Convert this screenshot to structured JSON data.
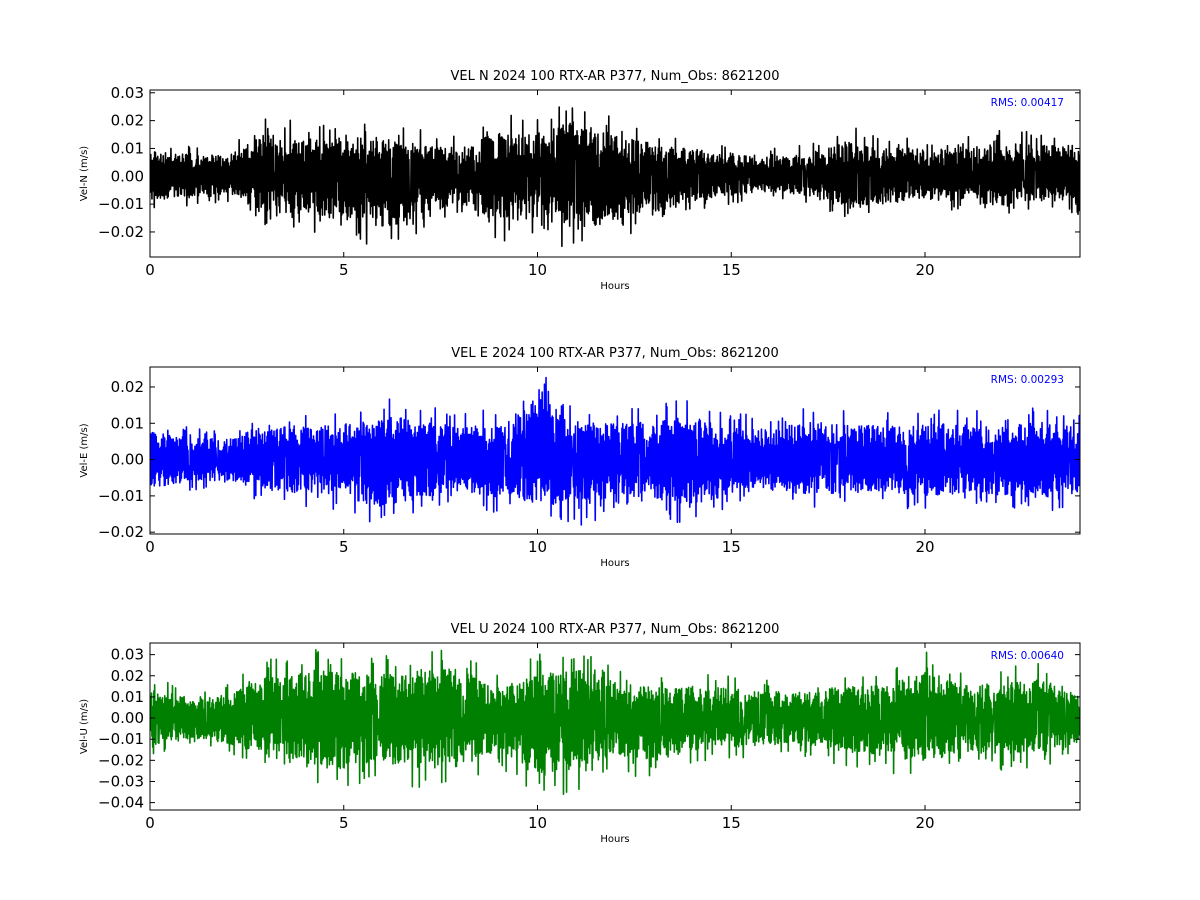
{
  "chart_data": [
    {
      "type": "line",
      "title": "VEL N 2024 100 RTX-AR  P377, Num_Obs: 8621200",
      "xlabel": "Hours",
      "ylabel": "Vel-N (m/s)",
      "xlim": [
        0,
        24
      ],
      "ylim": [
        -0.029,
        0.031
      ],
      "x_ticks": [
        0,
        5,
        10,
        15,
        20
      ],
      "y_ticks": [
        -0.02,
        -0.01,
        0.0,
        0.01,
        0.02,
        0.03
      ],
      "x_tick_labels": [
        "0",
        "5",
        "10",
        "15",
        "20"
      ],
      "y_tick_labels": [
        "−0.02",
        "−0.01",
        "0.00",
        "0.01",
        "0.02",
        "0.03"
      ],
      "annotation": "RMS:  0.00417",
      "series": [
        {
          "color": "#000000",
          "x": [
            0,
            1,
            2,
            3,
            4,
            5,
            6,
            7,
            8,
            9,
            10,
            11,
            12,
            13,
            14,
            15,
            16,
            17,
            18,
            19,
            20,
            21,
            22,
            23,
            24
          ],
          "y_max": [
            0.013,
            0.012,
            0.011,
            0.022,
            0.019,
            0.022,
            0.02,
            0.017,
            0.015,
            0.023,
            0.022,
            0.03,
            0.021,
            0.017,
            0.014,
            0.012,
            0.01,
            0.012,
            0.018,
            0.015,
            0.014,
            0.015,
            0.017,
            0.016,
            0.016
          ],
          "y_min": [
            -0.012,
            -0.011,
            -0.01,
            -0.018,
            -0.02,
            -0.022,
            -0.027,
            -0.02,
            -0.014,
            -0.024,
            -0.022,
            -0.029,
            -0.023,
            -0.02,
            -0.013,
            -0.01,
            -0.008,
            -0.01,
            -0.017,
            -0.014,
            -0.012,
            -0.013,
            -0.016,
            -0.013,
            -0.014
          ]
        }
      ]
    },
    {
      "type": "line",
      "title": "VEL E 2024 100 RTX-AR  P377, Num_Obs: 8621200",
      "xlabel": "Hours",
      "ylabel": "Vel-E (m/s)",
      "xlim": [
        0,
        24
      ],
      "ylim": [
        -0.0205,
        0.0255
      ],
      "x_ticks": [
        0,
        5,
        10,
        15,
        20
      ],
      "y_ticks": [
        -0.02,
        -0.01,
        0.0,
        0.01,
        0.02
      ],
      "x_tick_labels": [
        "0",
        "5",
        "10",
        "15",
        "20"
      ],
      "y_tick_labels": [
        "−0.02",
        "−0.01",
        "0.00",
        "0.01",
        "0.02"
      ],
      "annotation": "RMS:  0.00293",
      "series": [
        {
          "color": "#0000ff",
          "x": [
            0,
            1,
            2,
            3,
            4,
            5,
            6,
            7,
            8,
            9,
            10,
            11,
            12,
            13,
            14,
            15,
            16,
            17,
            18,
            19,
            20,
            21,
            22,
            23,
            24
          ],
          "y_max": [
            0.011,
            0.009,
            0.008,
            0.014,
            0.013,
            0.014,
            0.018,
            0.015,
            0.013,
            0.014,
            0.025,
            0.015,
            0.014,
            0.015,
            0.017,
            0.013,
            0.012,
            0.015,
            0.014,
            0.013,
            0.014,
            0.014,
            0.013,
            0.015,
            0.013
          ],
          "y_min": [
            -0.011,
            -0.009,
            -0.008,
            -0.013,
            -0.013,
            -0.015,
            -0.019,
            -0.015,
            -0.012,
            -0.015,
            -0.017,
            -0.02,
            -0.014,
            -0.015,
            -0.019,
            -0.013,
            -0.012,
            -0.014,
            -0.013,
            -0.013,
            -0.014,
            -0.014,
            -0.014,
            -0.015,
            -0.013
          ]
        }
      ]
    },
    {
      "type": "line",
      "title": "VEL U 2024 100 RTX-AR  P377, Num_Obs: 8621200",
      "xlabel": "Hours",
      "ylabel": "Vel-U (m/s)",
      "xlim": [
        0,
        24
      ],
      "ylim": [
        -0.0435,
        0.0355
      ],
      "x_ticks": [
        0,
        5,
        10,
        15,
        20
      ],
      "y_ticks": [
        -0.04,
        -0.03,
        -0.02,
        -0.01,
        0.0,
        0.01,
        0.02,
        0.03
      ],
      "x_tick_labels": [
        "0",
        "5",
        "10",
        "15",
        "20"
      ],
      "y_tick_labels": [
        "−0.04",
        "−0.03",
        "−0.02",
        "−0.01",
        "0.00",
        "0.01",
        "0.02",
        "0.03"
      ],
      "annotation": "RMS:  0.00640",
      "series": [
        {
          "color": "#008000",
          "x": [
            0,
            1,
            2,
            3,
            4,
            5,
            6,
            7,
            8,
            9,
            10,
            11,
            12,
            13,
            14,
            15,
            16,
            17,
            18,
            19,
            20,
            21,
            22,
            23,
            24
          ],
          "y_max": [
            0.02,
            0.014,
            0.016,
            0.028,
            0.033,
            0.031,
            0.03,
            0.034,
            0.033,
            0.02,
            0.03,
            0.034,
            0.024,
            0.022,
            0.022,
            0.02,
            0.018,
            0.018,
            0.022,
            0.022,
            0.035,
            0.022,
            0.024,
            0.026,
            0.018
          ],
          "y_min": [
            -0.02,
            -0.014,
            -0.017,
            -0.026,
            -0.037,
            -0.034,
            -0.03,
            -0.034,
            -0.033,
            -0.022,
            -0.04,
            -0.035,
            -0.025,
            -0.03,
            -0.022,
            -0.02,
            -0.018,
            -0.019,
            -0.024,
            -0.026,
            -0.03,
            -0.024,
            -0.025,
            -0.026,
            -0.018
          ]
        }
      ]
    }
  ]
}
